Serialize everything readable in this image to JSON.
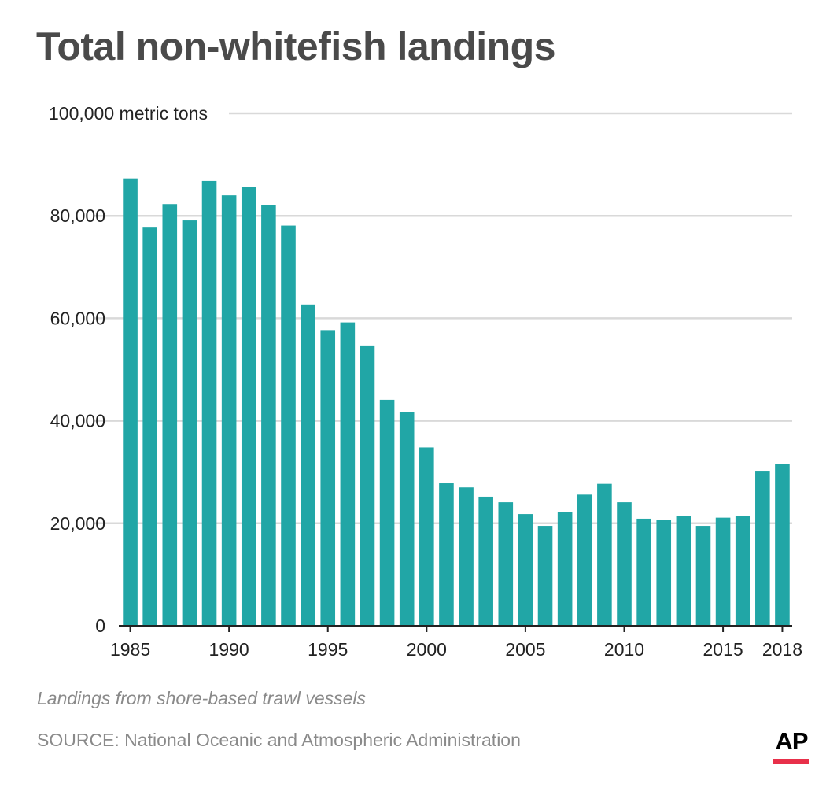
{
  "title": "Total non-whitefish landings",
  "note": "Landings from shore-based trawl vessels",
  "source": "SOURCE: National Oceanic and Atmospheric Administration",
  "logo": {
    "text": "AP",
    "accent_color": "#e8304a"
  },
  "colors": {
    "bar": "#21a6a6",
    "grid": "#d9d9d9",
    "axis": "#222222",
    "tick_text": "#222222"
  },
  "chart_data": {
    "type": "bar",
    "title": "Total non-whitefish landings",
    "ylabel": "metric tons",
    "ylim": [
      0,
      100000
    ],
    "y_ticks": [
      0,
      20000,
      40000,
      60000,
      80000,
      100000
    ],
    "y_tick_labels": [
      "0",
      "20,000",
      "40,000",
      "60,000",
      "80,000",
      "100,000 metric tons"
    ],
    "x_tick_labels": [
      "1985",
      "1990",
      "1995",
      "2000",
      "2005",
      "2010",
      "2015",
      "2018"
    ],
    "grid": true,
    "categories": [
      "1985",
      "1986",
      "1987",
      "1988",
      "1989",
      "1990",
      "1991",
      "1992",
      "1993",
      "1994",
      "1995",
      "1996",
      "1997",
      "1998",
      "1999",
      "2000",
      "2001",
      "2002",
      "2003",
      "2004",
      "2005",
      "2006",
      "2007",
      "2008",
      "2009",
      "2010",
      "2011",
      "2012",
      "2013",
      "2014",
      "2015",
      "2016",
      "2017",
      "2018"
    ],
    "values": [
      87300,
      77700,
      82300,
      79100,
      86800,
      84000,
      85600,
      82100,
      78100,
      62700,
      57700,
      59200,
      54700,
      44100,
      41700,
      34800,
      27800,
      27000,
      25200,
      24100,
      21800,
      19500,
      22200,
      25600,
      27700,
      24100,
      20900,
      20700,
      21500,
      19500,
      21100,
      21500,
      30100,
      31500
    ]
  }
}
